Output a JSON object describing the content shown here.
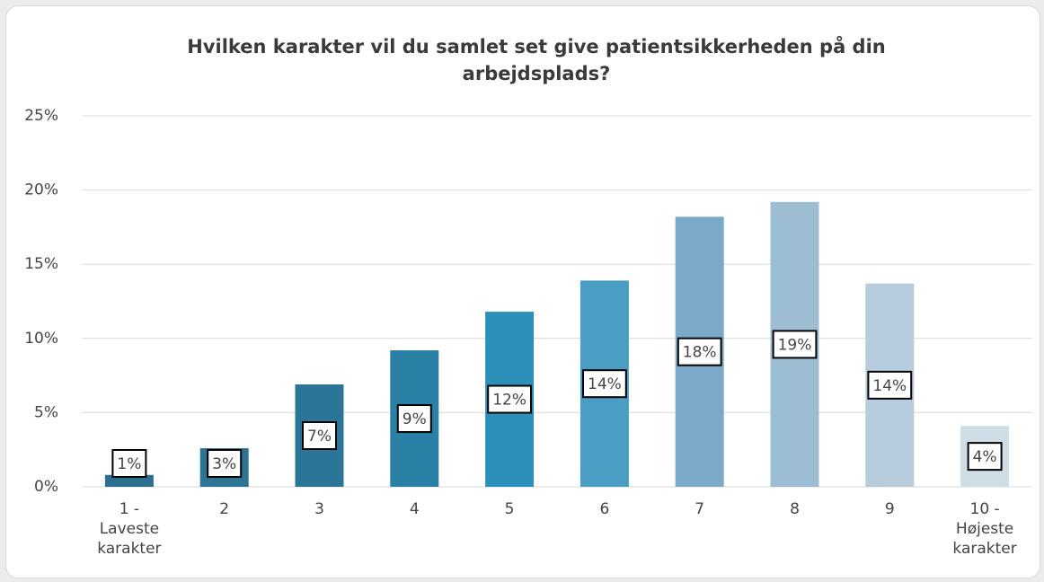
{
  "chart_data": {
    "type": "bar",
    "title": "Hvilken karakter vil du samlet set give patientsikkerheden på din arbejdsplads?",
    "categories": [
      "1 - Laveste karakter",
      "2",
      "3",
      "4",
      "5",
      "6",
      "7",
      "8",
      "9",
      "10 - Højeste karakter"
    ],
    "values": [
      0.8,
      2.6,
      6.9,
      9.2,
      11.8,
      13.9,
      18.2,
      19.2,
      13.7,
      4.1
    ],
    "value_labels": [
      "1%",
      "3%",
      "7%",
      "9%",
      "12%",
      "14%",
      "18%",
      "19%",
      "14%",
      "4%"
    ],
    "colors": [
      "#2a6f8f",
      "#2d7394",
      "#2b7598",
      "#2a80a5",
      "#2d90bb",
      "#4a9ec3",
      "#7aaac7",
      "#9dbdd3",
      "#b7cddd",
      "#cfdde7"
    ],
    "ylim": [
      0,
      25
    ],
    "yticks": [
      {
        "value": 0,
        "label": "0%"
      },
      {
        "value": 5,
        "label": "5%"
      },
      {
        "value": 10,
        "label": "10%"
      },
      {
        "value": 15,
        "label": "15%"
      },
      {
        "value": 20,
        "label": "20%"
      },
      {
        "value": 25,
        "label": "25%"
      }
    ],
    "grid": true
  }
}
